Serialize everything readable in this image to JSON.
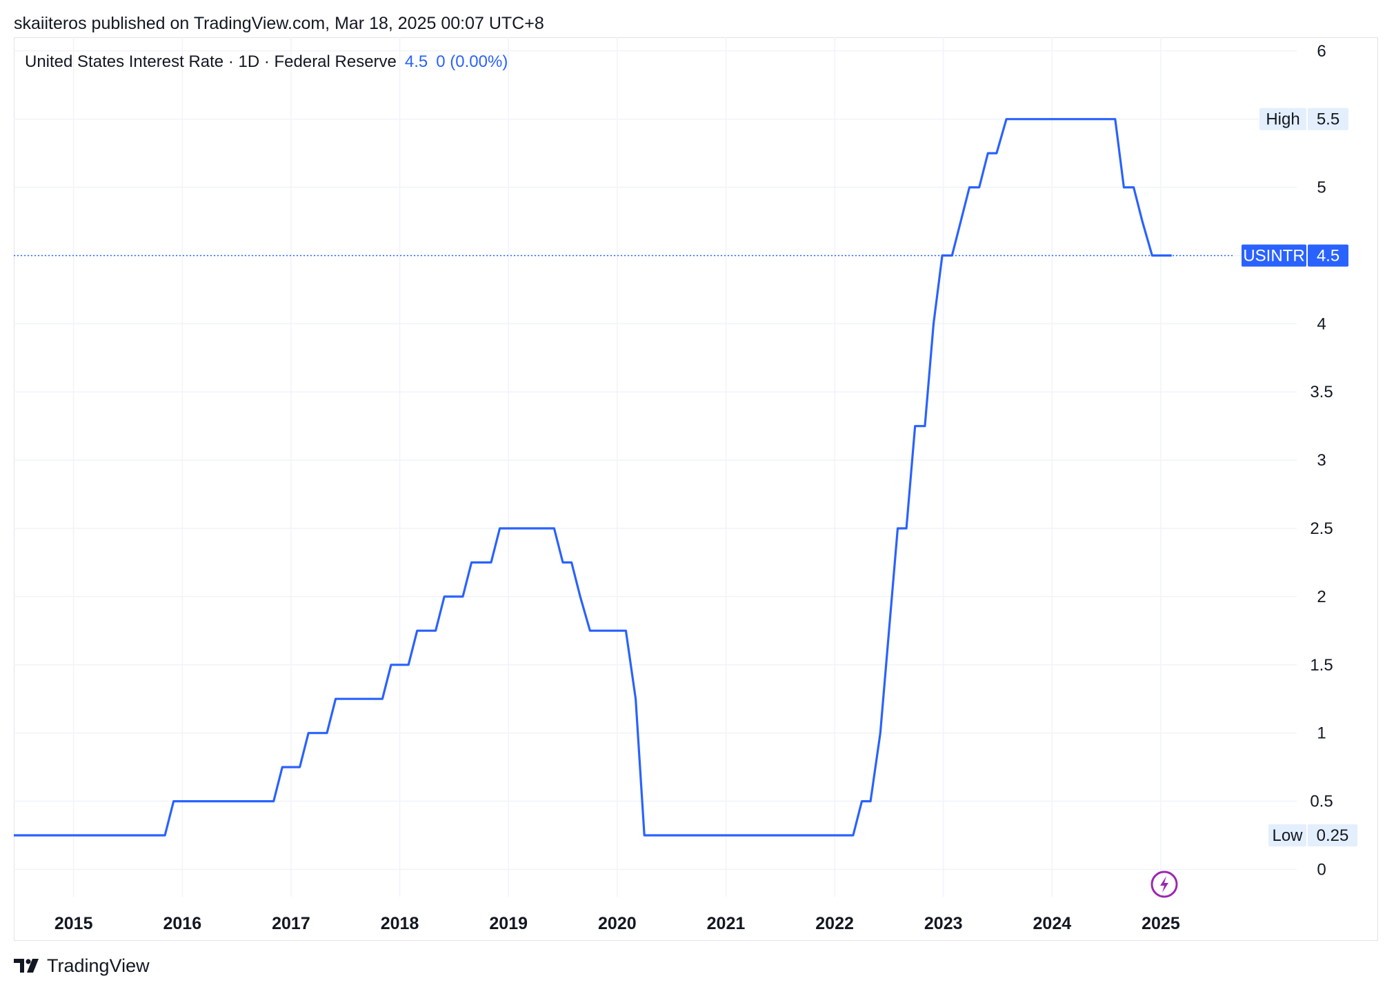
{
  "publish_line": "skaiiteros published on TradingView.com, Mar 18, 2025 00:07 UTC+8",
  "legend": {
    "title": "United States Interest Rate · 1D · Federal Reserve",
    "value": "4.5",
    "change": "0 (0.00%)"
  },
  "footer": {
    "brand": "TradingView"
  },
  "colors": {
    "line": "#2962ff",
    "grid": "#f0f3fa",
    "axis_text": "#131722",
    "tag_bg": "#e3effd",
    "event": "#9c27b0"
  },
  "chart_data": {
    "type": "line",
    "title": "United States Interest Rate · 1D · Federal Reserve",
    "xlabel": "",
    "ylabel": "",
    "x_ticks": [
      "2015",
      "2016",
      "2017",
      "2018",
      "2019",
      "2020",
      "2021",
      "2022",
      "2023",
      "2024",
      "2025"
    ],
    "y_ticks": [
      "0",
      "0.5",
      "1",
      "1.5",
      "2",
      "2.5",
      "3",
      "3.5",
      "4",
      "4.5",
      "5",
      "5.5",
      "6"
    ],
    "ylim": [
      -0.2,
      6.1
    ],
    "xlim": [
      2014.45,
      2026.25
    ],
    "grid": true,
    "series": [
      {
        "name": "USINTR",
        "points": [
          [
            2014.45,
            0.25
          ],
          [
            2015.84,
            0.25
          ],
          [
            2015.92,
            0.5
          ],
          [
            2016.84,
            0.5
          ],
          [
            2016.92,
            0.75
          ],
          [
            2017.08,
            0.75
          ],
          [
            2017.16,
            1.0
          ],
          [
            2017.33,
            1.0
          ],
          [
            2017.41,
            1.25
          ],
          [
            2017.84,
            1.25
          ],
          [
            2017.92,
            1.5
          ],
          [
            2018.08,
            1.5
          ],
          [
            2018.16,
            1.75
          ],
          [
            2018.33,
            1.75
          ],
          [
            2018.41,
            2.0
          ],
          [
            2018.58,
            2.0
          ],
          [
            2018.66,
            2.25
          ],
          [
            2018.84,
            2.25
          ],
          [
            2018.92,
            2.5
          ],
          [
            2019.42,
            2.5
          ],
          [
            2019.5,
            2.25
          ],
          [
            2019.58,
            2.25
          ],
          [
            2019.66,
            2.0
          ],
          [
            2019.75,
            1.75
          ],
          [
            2020.08,
            1.75
          ],
          [
            2020.17,
            1.25
          ],
          [
            2020.25,
            0.25
          ],
          [
            2022.17,
            0.25
          ],
          [
            2022.25,
            0.5
          ],
          [
            2022.33,
            0.5
          ],
          [
            2022.42,
            1.0
          ],
          [
            2022.5,
            1.75
          ],
          [
            2022.58,
            2.5
          ],
          [
            2022.66,
            2.5
          ],
          [
            2022.74,
            3.25
          ],
          [
            2022.83,
            3.25
          ],
          [
            2022.91,
            4.0
          ],
          [
            2022.99,
            4.5
          ],
          [
            2023.08,
            4.5
          ],
          [
            2023.16,
            4.75
          ],
          [
            2023.24,
            5.0
          ],
          [
            2023.33,
            5.0
          ],
          [
            2023.41,
            5.25
          ],
          [
            2023.49,
            5.25
          ],
          [
            2023.58,
            5.5
          ],
          [
            2024.58,
            5.5
          ],
          [
            2024.66,
            5.0
          ],
          [
            2024.75,
            5.0
          ],
          [
            2024.83,
            4.75
          ],
          [
            2024.92,
            4.5
          ],
          [
            2025.1,
            4.5
          ]
        ]
      }
    ],
    "last_value_line": 4.5,
    "markers": [
      {
        "label": "USINTR",
        "value": "4.5",
        "y": 4.5,
        "style": "filled"
      },
      {
        "label": "High",
        "value": "5.5",
        "y": 5.5,
        "style": "light"
      },
      {
        "label": "Low",
        "value": "0.25",
        "y": 0.25,
        "style": "light"
      }
    ],
    "event_icon": {
      "x": 2025.0,
      "icon": "lightning-icon"
    }
  }
}
